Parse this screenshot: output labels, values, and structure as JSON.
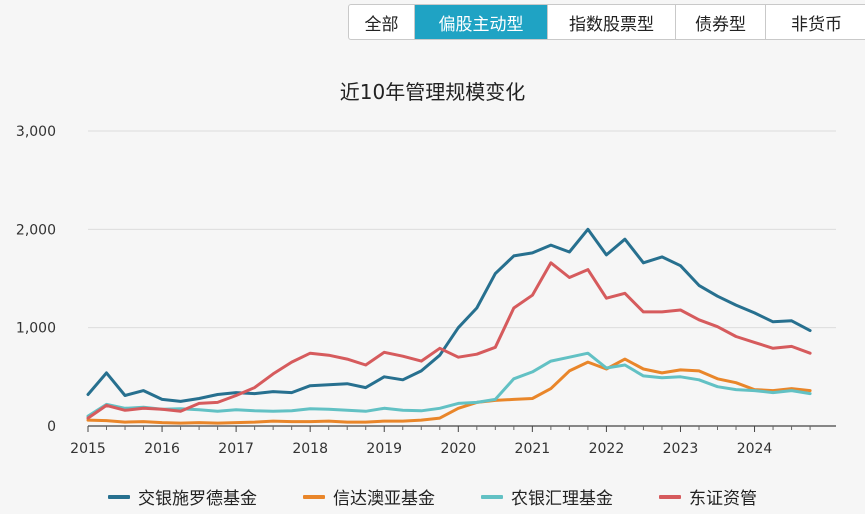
{
  "tabs": [
    {
      "label": "全部",
      "active": false
    },
    {
      "label": "偏股主动型",
      "active": true
    },
    {
      "label": "指数股票型",
      "active": false
    },
    {
      "label": "债券型",
      "active": false
    },
    {
      "label": "非货币",
      "active": false
    }
  ],
  "colors": {
    "accent": "#1fa3c4",
    "series": [
      "#27708f",
      "#e9862a",
      "#62c1c4",
      "#d65b5d"
    ]
  },
  "chart_data": {
    "type": "line",
    "title": "近10年管理规模变化",
    "xlabel": "",
    "ylabel": "",
    "ylim": [
      0,
      3000
    ],
    "xlim": [
      2015.0,
      2025.1
    ],
    "yticks": [
      0,
      1000,
      2000,
      3000
    ],
    "ytick_labels": [
      "0",
      "1,000",
      "2,000",
      "3,000"
    ],
    "xticks": [
      "2015",
      "2016",
      "2017",
      "2018",
      "2019",
      "2020",
      "2021",
      "2022",
      "2023",
      "2024"
    ],
    "grid": true,
    "legend_position": "bottom",
    "x": [
      2015.0,
      2015.25,
      2015.5,
      2015.75,
      2016.0,
      2016.25,
      2016.5,
      2016.75,
      2017.0,
      2017.25,
      2017.5,
      2017.75,
      2018.0,
      2018.25,
      2018.5,
      2018.75,
      2019.0,
      2019.25,
      2019.5,
      2019.75,
      2020.0,
      2020.25,
      2020.5,
      2020.75,
      2021.0,
      2021.25,
      2021.5,
      2021.75,
      2022.0,
      2022.25,
      2022.5,
      2022.75,
      2023.0,
      2023.25,
      2023.5,
      2023.75,
      2024.0,
      2024.25,
      2024.5,
      2024.75
    ],
    "series": [
      {
        "name": "交银施罗德基金",
        "values": [
          320,
          540,
          310,
          360,
          270,
          250,
          280,
          320,
          340,
          330,
          350,
          340,
          410,
          420,
          430,
          390,
          500,
          470,
          560,
          720,
          1000,
          1200,
          1550,
          1730,
          1760,
          1840,
          1770,
          2000,
          1740,
          1900,
          1660,
          1720,
          1630,
          1430,
          1320,
          1230,
          1150,
          1060,
          1070,
          970
        ]
      },
      {
        "name": "信达澳亚基金",
        "values": [
          60,
          55,
          40,
          45,
          35,
          30,
          35,
          30,
          35,
          40,
          50,
          45,
          45,
          50,
          40,
          40,
          50,
          50,
          60,
          80,
          180,
          240,
          260,
          270,
          280,
          380,
          560,
          650,
          580,
          680,
          580,
          540,
          570,
          560,
          480,
          440,
          370,
          360,
          380,
          360
        ]
      },
      {
        "name": "农银汇理基金",
        "values": [
          100,
          220,
          180,
          190,
          170,
          175,
          165,
          150,
          165,
          155,
          150,
          155,
          175,
          170,
          160,
          150,
          180,
          160,
          155,
          180,
          230,
          240,
          270,
          480,
          550,
          660,
          700,
          740,
          590,
          620,
          510,
          490,
          500,
          470,
          400,
          370,
          360,
          340,
          360,
          330
        ]
      },
      {
        "name": "东证资管",
        "values": [
          80,
          210,
          160,
          180,
          170,
          150,
          230,
          240,
          310,
          390,
          530,
          650,
          740,
          720,
          680,
          620,
          750,
          710,
          660,
          790,
          700,
          730,
          800,
          1200,
          1330,
          1660,
          1510,
          1590,
          1300,
          1350,
          1160,
          1160,
          1180,
          1080,
          1010,
          910,
          850,
          790,
          810,
          740
        ]
      }
    ]
  }
}
